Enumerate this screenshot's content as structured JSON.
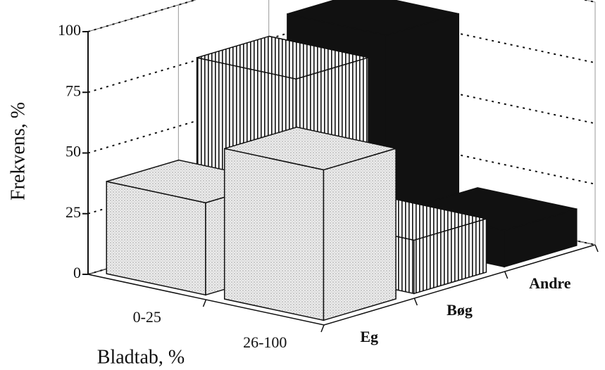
{
  "chart_data": {
    "type": "bar3d",
    "x_label": "Bladtab, %",
    "y_label": "Frekvens, %",
    "categories": [
      "0-25",
      "26-100"
    ],
    "series": [
      {
        "name": "Eg",
        "color": "#ececec",
        "values": [
          38,
          62
        ]
      },
      {
        "name": "Bøg",
        "color": "#ffffff",
        "values": [
          78,
          22
        ]
      },
      {
        "name": "Andre",
        "color": "#111111",
        "values": [
          85,
          15
        ]
      }
    ],
    "ylim": [
      0,
      100
    ],
    "yticks": [
      0,
      25,
      50,
      75,
      100
    ],
    "grid": true
  }
}
